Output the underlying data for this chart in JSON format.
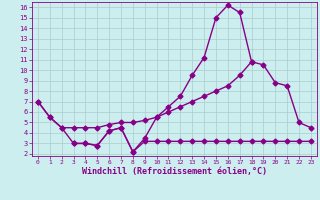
{
  "title": "",
  "xlabel": "Windchill (Refroidissement éolien,°C)",
  "ylabel": "",
  "bg_color": "#cceeee",
  "grid_color": "#aacccc",
  "line_color": "#880088",
  "xlim": [
    -0.5,
    23.5
  ],
  "ylim": [
    1.8,
    16.5
  ],
  "xticks": [
    0,
    1,
    2,
    3,
    4,
    5,
    6,
    7,
    8,
    9,
    10,
    11,
    12,
    13,
    14,
    15,
    16,
    17,
    18,
    19,
    20,
    21,
    22,
    23
  ],
  "yticks": [
    2,
    3,
    4,
    5,
    6,
    7,
    8,
    9,
    10,
    11,
    12,
    13,
    14,
    15,
    16
  ],
  "line1_x": [
    0,
    1,
    2,
    3,
    4,
    5,
    6,
    7,
    8,
    9,
    10,
    11,
    12,
    13,
    14,
    15,
    16,
    17,
    18,
    19,
    20,
    21,
    22,
    23
  ],
  "line1_y": [
    7.0,
    5.5,
    4.5,
    3.0,
    3.0,
    2.8,
    4.2,
    4.5,
    2.2,
    3.5,
    5.5,
    6.5,
    7.5,
    9.5,
    11.2,
    15.0,
    16.2,
    15.5,
    10.8,
    null,
    null,
    null,
    null,
    null
  ],
  "line2_x": [
    0,
    1,
    2,
    3,
    4,
    5,
    6,
    7,
    8,
    9,
    10,
    11,
    12,
    13,
    14,
    15,
    16,
    17,
    18,
    19,
    20,
    21,
    22,
    23
  ],
  "line2_y": [
    7.0,
    5.5,
    4.5,
    4.5,
    4.5,
    4.5,
    4.8,
    5.0,
    5.0,
    5.2,
    5.5,
    6.0,
    6.5,
    7.0,
    7.5,
    8.0,
    8.5,
    9.5,
    10.8,
    10.5,
    8.8,
    8.5,
    5.0,
    4.5
  ],
  "line3_x": [
    0,
    1,
    2,
    3,
    4,
    5,
    6,
    7,
    8,
    9,
    10,
    11,
    12,
    13,
    14,
    15,
    16,
    17,
    18,
    19,
    20,
    21,
    22,
    23
  ],
  "line3_y": [
    null,
    null,
    null,
    3.0,
    3.0,
    2.8,
    4.2,
    4.5,
    2.2,
    3.2,
    3.2,
    3.2,
    3.2,
    3.2,
    3.2,
    3.2,
    3.2,
    3.2,
    3.2,
    3.2,
    3.2,
    3.2,
    3.2,
    3.2
  ],
  "marker": "D",
  "markersize": 2.5,
  "linewidth": 1.0
}
